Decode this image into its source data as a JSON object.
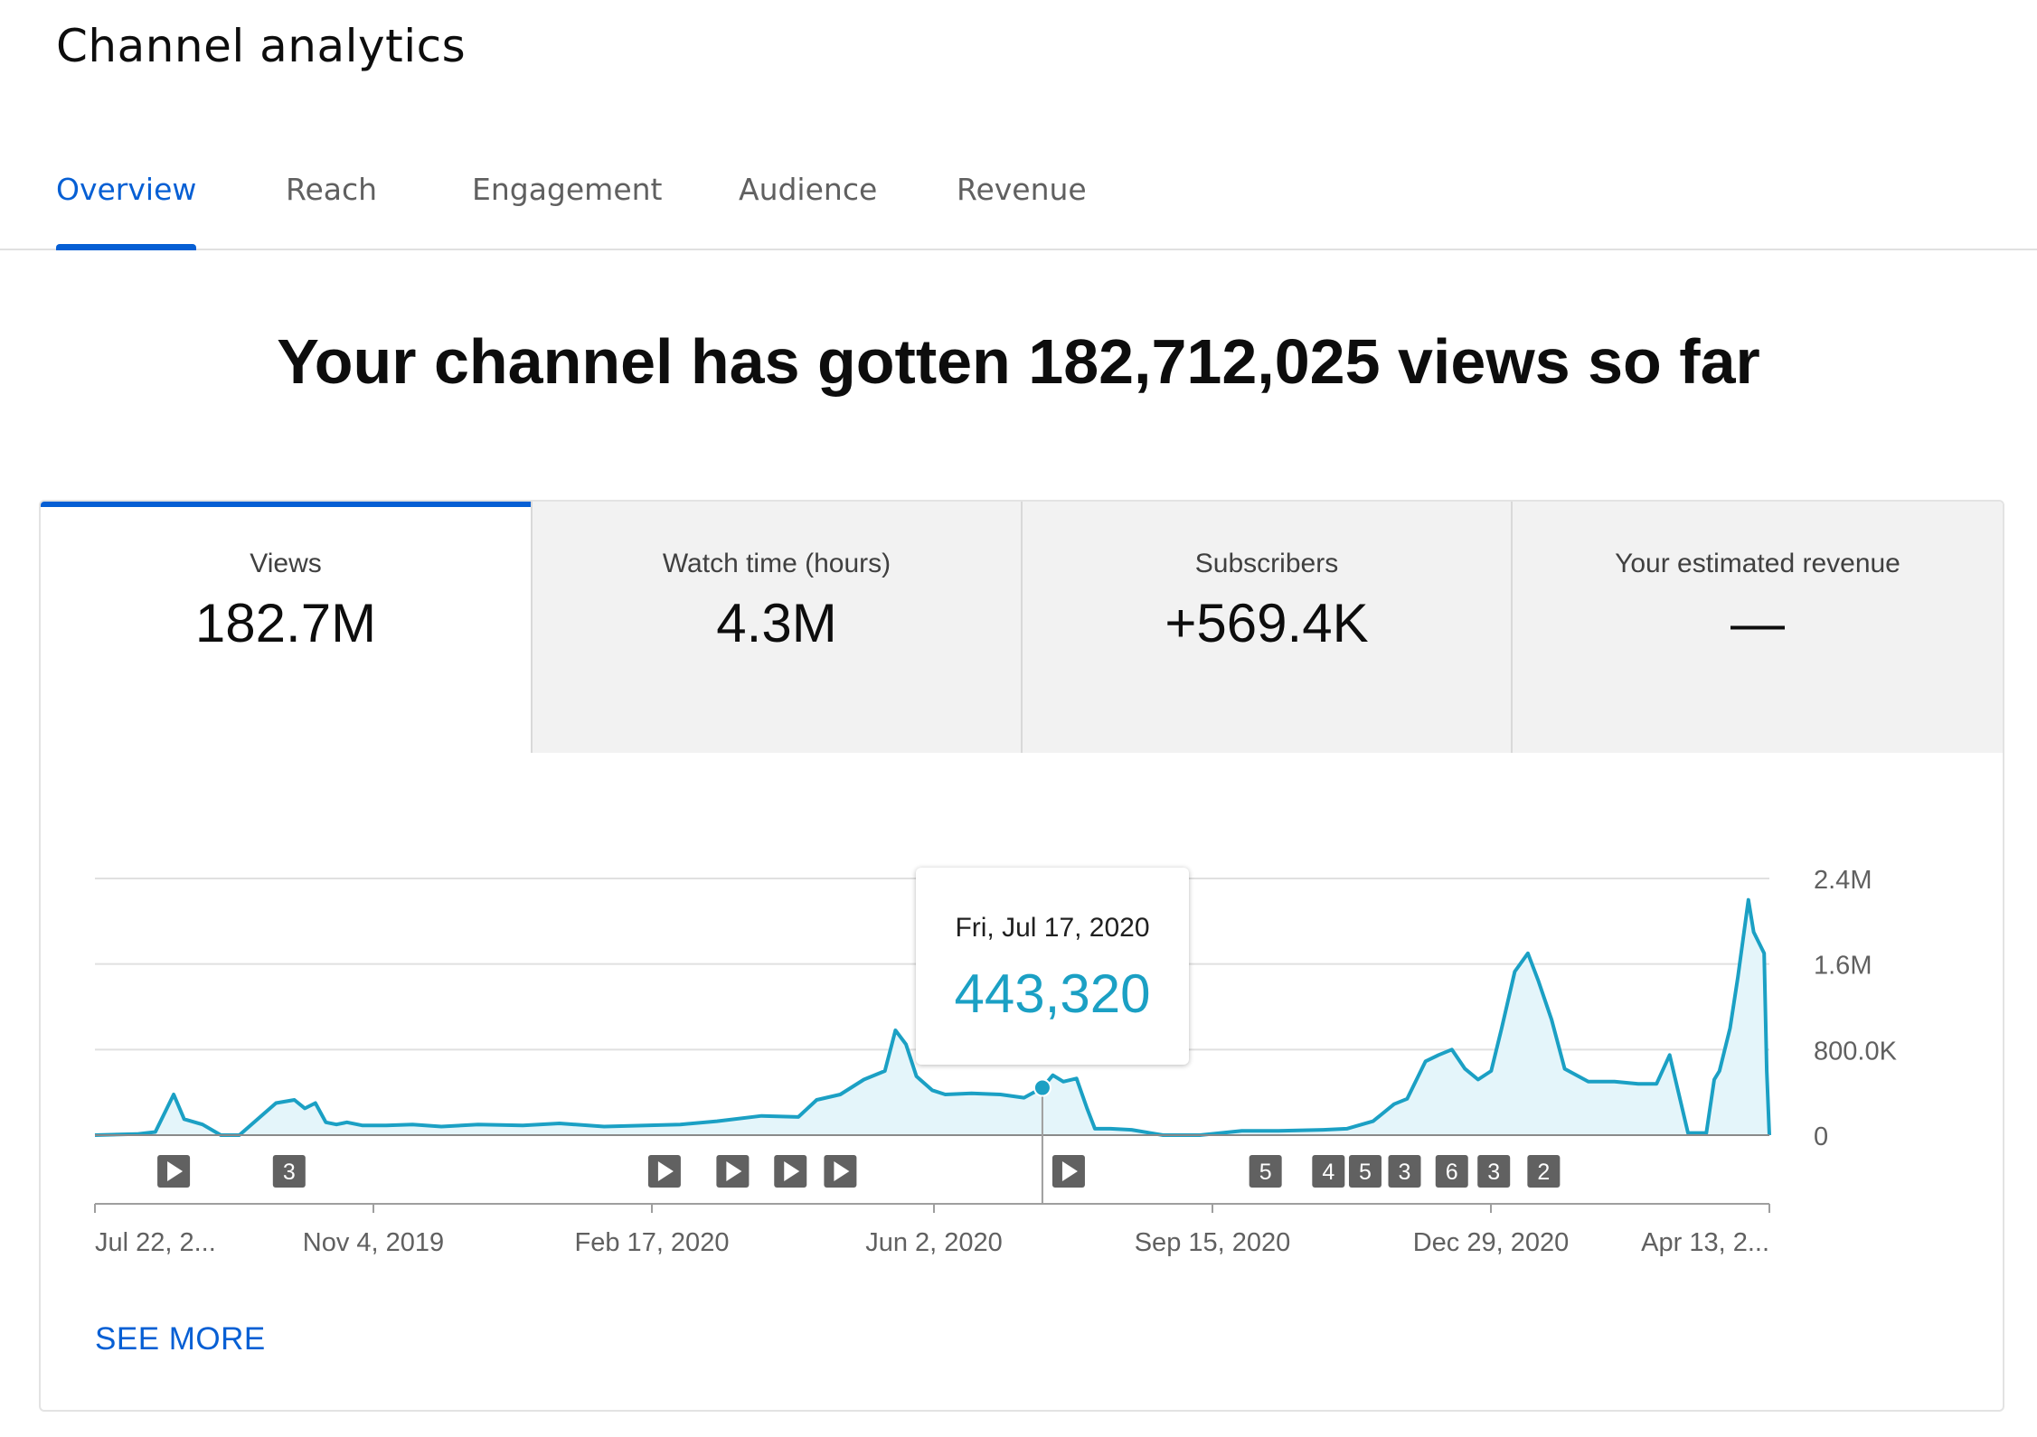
{
  "header": {
    "title": "Channel analytics"
  },
  "tabs": [
    {
      "label": "Overview",
      "active": true
    },
    {
      "label": "Reach",
      "active": false
    },
    {
      "label": "Engagement",
      "active": false
    },
    {
      "label": "Audience",
      "active": false
    },
    {
      "label": "Revenue",
      "active": false
    }
  ],
  "summary": {
    "headline": "Your channel has gotten 182,712,025 views so far"
  },
  "metrics": [
    {
      "label": "Views",
      "value": "182.7M",
      "selected": true
    },
    {
      "label": "Watch time (hours)",
      "value": "4.3M",
      "selected": false
    },
    {
      "label": "Subscribers",
      "value": "+569.4K",
      "selected": false
    },
    {
      "label": "Your estimated revenue",
      "value": "—",
      "selected": false
    }
  ],
  "tooltip": {
    "date": "Fri, Jul 17, 2020",
    "value": "443,320"
  },
  "see_more_label": "SEE MORE",
  "colors": {
    "accent": "#065fd4",
    "line": "#1ba0c4",
    "fill": "#e4f5fa",
    "marker": "#616161"
  },
  "chart_data": {
    "type": "area",
    "series": [
      {
        "x": [
          "2019-07-22",
          "2019-08-07",
          "2019-08-14",
          "2019-08-21",
          "2019-08-25",
          "2019-09-01",
          "2019-09-08",
          "2019-09-15",
          "2019-09-29",
          "2019-10-06",
          "2019-10-10",
          "2019-10-14",
          "2019-10-18",
          "2019-10-22",
          "2019-10-26",
          "2019-11-01",
          "2019-11-10",
          "2019-11-20",
          "2019-12-01",
          "2019-12-15",
          "2020-01-01",
          "2020-01-15",
          "2020-02-01",
          "2020-02-17",
          "2020-03-01",
          "2020-03-15",
          "2020-04-01",
          "2020-04-15",
          "2020-04-22",
          "2020-05-01",
          "2020-05-10",
          "2020-05-18",
          "2020-05-22",
          "2020-05-26",
          "2020-05-30",
          "2020-06-05",
          "2020-06-10",
          "2020-06-20",
          "2020-07-01",
          "2020-07-10",
          "2020-07-17",
          "2020-07-21",
          "2020-07-25",
          "2020-07-30",
          "2020-08-03",
          "2020-08-06",
          "2020-08-12",
          "2020-08-20",
          "2020-09-01",
          "2020-09-15",
          "2020-10-01",
          "2020-10-15",
          "2020-11-01",
          "2020-11-10",
          "2020-11-20",
          "2020-11-28",
          "2020-12-03",
          "2020-12-10",
          "2020-12-15",
          "2020-12-20",
          "2020-12-25",
          "2020-12-30",
          "2021-01-04",
          "2021-01-08",
          "2021-01-13",
          "2021-01-18",
          "2021-01-22",
          "2021-01-27",
          "2021-02-01",
          "2021-02-10",
          "2021-02-20",
          "2021-03-01",
          "2021-03-08",
          "2021-03-13",
          "2021-03-20",
          "2021-03-27",
          "2021-03-30",
          "2021-04-01",
          "2021-04-05",
          "2021-04-08",
          "2021-04-12",
          "2021-04-14",
          "2021-04-18",
          "2021-04-19",
          "2021-04-20"
        ],
        "y": [
          0,
          10000,
          30000,
          380000,
          150000,
          100000,
          0,
          0,
          300000,
          330000,
          250000,
          300000,
          120000,
          100000,
          120000,
          90000,
          90000,
          100000,
          80000,
          100000,
          90000,
          110000,
          80000,
          90000,
          100000,
          130000,
          180000,
          170000,
          330000,
          380000,
          520000,
          600000,
          980000,
          850000,
          550000,
          420000,
          380000,
          390000,
          380000,
          350000,
          443320,
          560000,
          500000,
          530000,
          250000,
          60000,
          60000,
          50000,
          0,
          0,
          40000,
          40000,
          50000,
          60000,
          130000,
          290000,
          340000,
          690000,
          750000,
          800000,
          620000,
          520000,
          600000,
          1000000,
          1530000,
          1700000,
          1440000,
          1080000,
          620000,
          500000,
          500000,
          480000,
          480000,
          750000,
          20000,
          20000,
          520000,
          600000,
          1000000,
          1480000,
          2200000,
          1900000,
          1700000,
          600000,
          0
        ]
      }
    ],
    "yticks": [
      "2.4M",
      "1.6M",
      "800.0K",
      "0"
    ],
    "ylim": [
      0,
      2400000
    ],
    "xticks": [
      "Jul 22, 2...",
      "Nov 4, 2019",
      "Feb 17, 2020",
      "Jun 2, 2020",
      "Sep 15, 2020",
      "Dec 29, 2020",
      "Apr 13, 2..."
    ],
    "xlim": [
      "2019-07-22",
      "2021-04-20"
    ],
    "markers": [
      {
        "date": "2019-08-21",
        "label": ""
      },
      {
        "date": "2019-10-04",
        "label": "3"
      },
      {
        "date": "2020-02-24",
        "label": ""
      },
      {
        "date": "2020-03-21",
        "label": ""
      },
      {
        "date": "2020-04-12",
        "label": ""
      },
      {
        "date": "2020-05-01",
        "label": ""
      },
      {
        "date": "2020-07-27",
        "label": ""
      },
      {
        "date": "2020-10-10",
        "label": "5"
      },
      {
        "date": "2020-11-03",
        "label": "4"
      },
      {
        "date": "2020-11-17",
        "label": "5"
      },
      {
        "date": "2020-12-02",
        "label": "3"
      },
      {
        "date": "2020-12-20",
        "label": "6"
      },
      {
        "date": "2021-01-05",
        "label": "3"
      },
      {
        "date": "2021-01-24",
        "label": "2"
      }
    ],
    "highlight": {
      "date": "2020-07-17",
      "value": 443320
    },
    "grid": true,
    "tooltip_date": "Fri, Jul 17, 2020",
    "tooltip_value": "443,320"
  }
}
